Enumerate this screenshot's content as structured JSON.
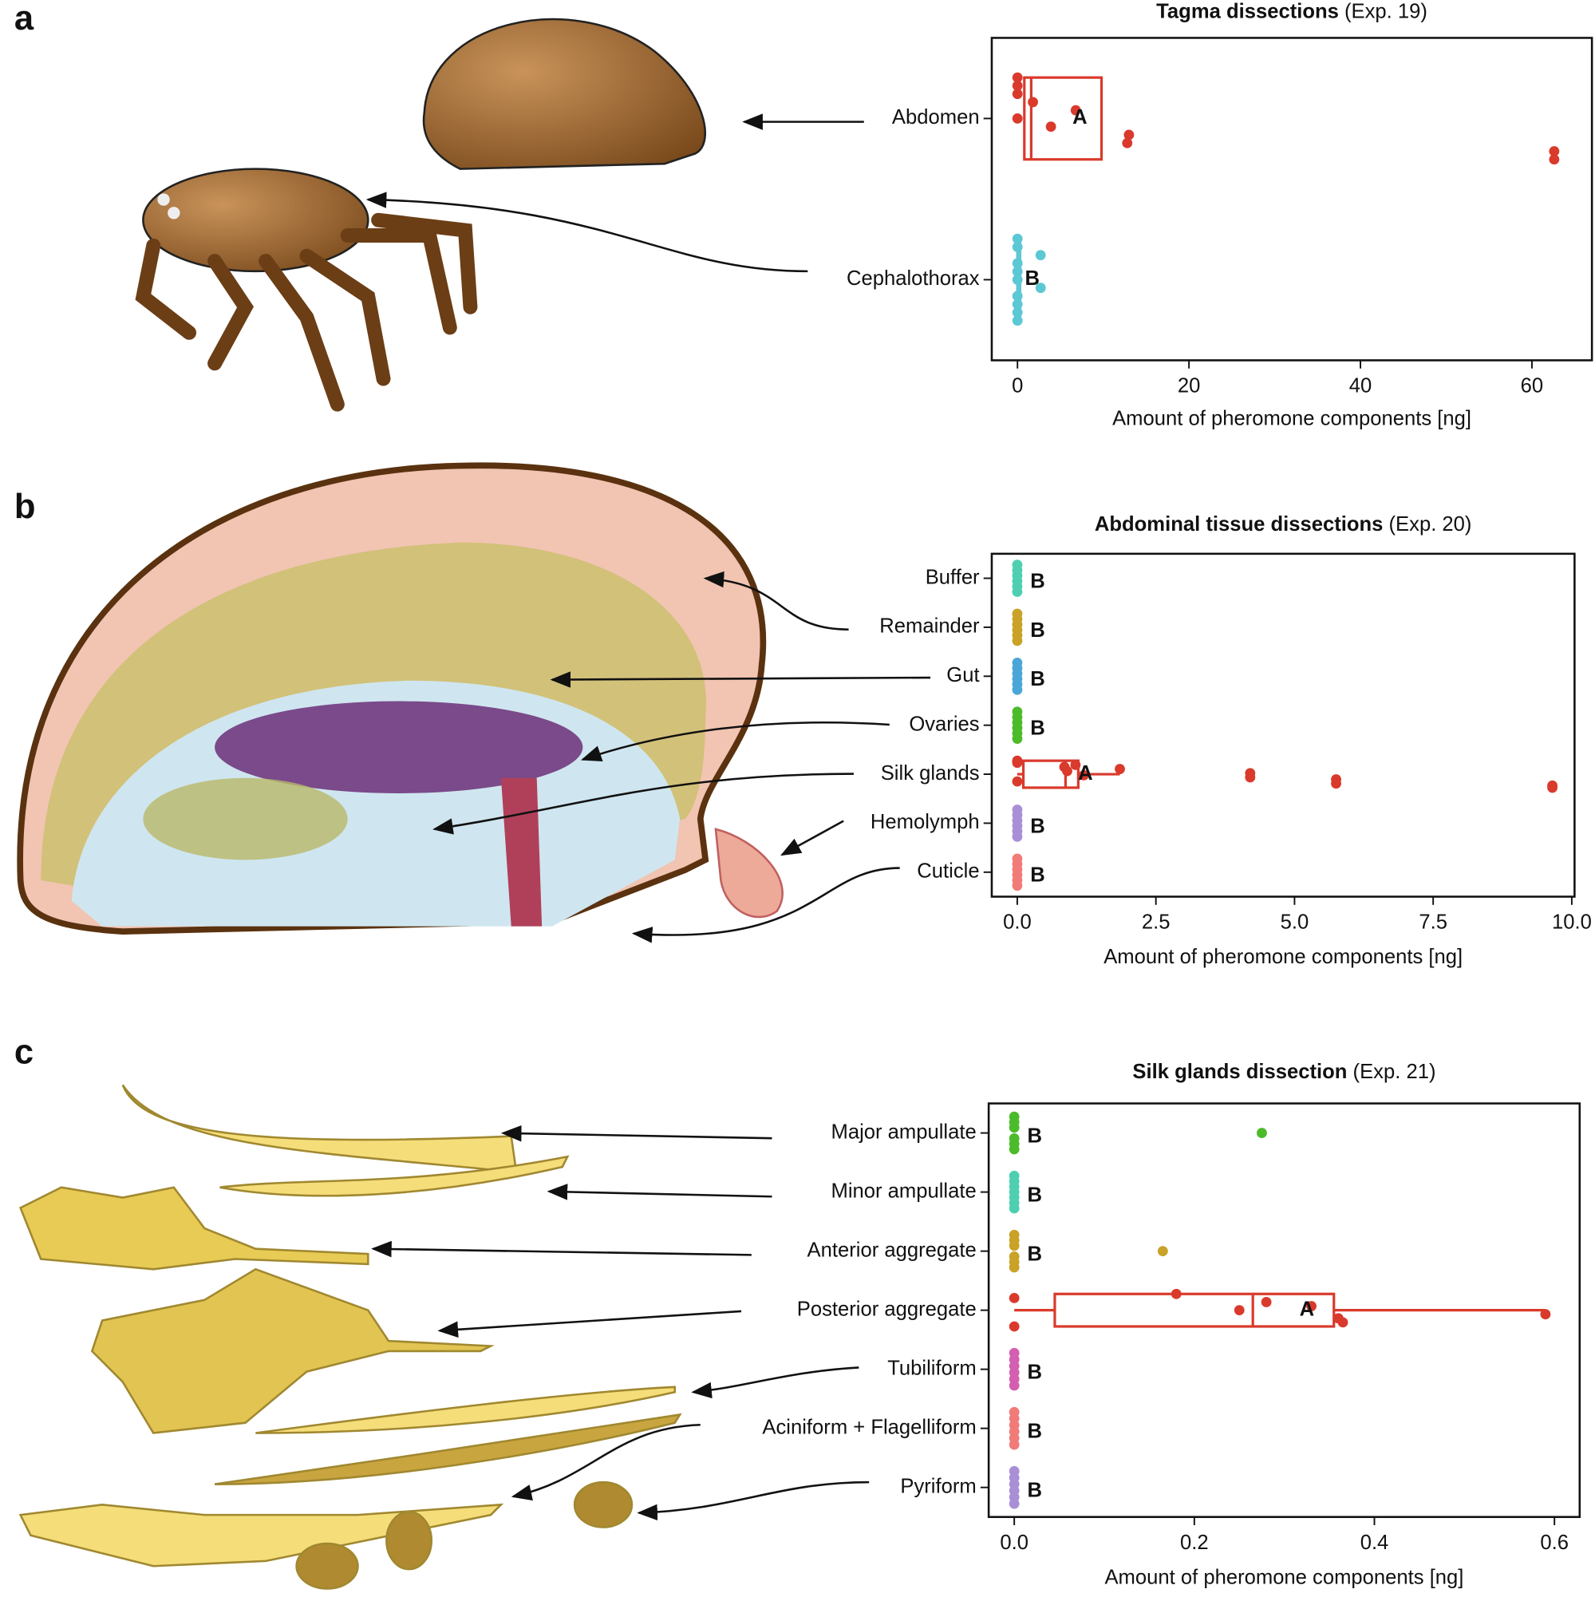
{
  "chart_data": [
    {
      "type": "box",
      "panel_label": "a",
      "title": "Tagma dissections",
      "title_note": "(Exp. 19)",
      "xlabel": "Amount of pheromone components [ng]",
      "xlim": [
        -3,
        67
      ],
      "xticks": [
        0,
        20,
        40,
        60
      ],
      "categories": [
        "Abdomen",
        "Cephalothorax"
      ],
      "groups": [
        {
          "color": "#d93a2b",
          "letter": "A",
          "points": [
            0,
            0,
            0,
            1.8,
            6.8,
            0,
            3.9,
            13,
            12.8,
            62.6,
            62.6
          ],
          "box": {
            "q1": 0.8,
            "median": 1.6,
            "q3": 9.8
          }
        },
        {
          "color": "#5bc8d4",
          "letter": "B",
          "points": [
            0,
            0,
            2.7,
            0,
            0,
            0,
            2.7,
            0,
            0,
            0,
            0
          ],
          "box": {
            "q1": 0,
            "median": 0,
            "q3": 0.3
          }
        }
      ]
    },
    {
      "type": "box",
      "panel_label": "b",
      "title": "Abdominal tissue dissections",
      "title_note": "(Exp. 20)",
      "xlabel": "Amount of pheromone components [ng]",
      "xlim": [
        -0.46,
        10.05
      ],
      "xticks": [
        {
          "value": 0,
          "label": "0.0"
        },
        2.5,
        {
          "value": 5,
          "label": "5.0"
        },
        7.5,
        {
          "value": 10,
          "label": "10.0"
        }
      ],
      "categories": [
        "Buffer",
        "Remainder",
        "Gut",
        "Ovaries",
        "Silk glands",
        "Hemolymph",
        "Cuticle"
      ],
      "groups": [
        {
          "color": "#4ecfb0",
          "letter": "B",
          "points": [
            0,
            0,
            0,
            0,
            0,
            0
          ]
        },
        {
          "color": "#c9a227",
          "letter": "B",
          "points": [
            0,
            0,
            0,
            0,
            0,
            0
          ]
        },
        {
          "color": "#4aa6d6",
          "letter": "B",
          "points": [
            0,
            0,
            0,
            0,
            0,
            0
          ]
        },
        {
          "color": "#4cbb2a",
          "letter": "B",
          "points": [
            0,
            0,
            0,
            0,
            0,
            0
          ]
        },
        {
          "color": "#d93a2b",
          "letter": "A",
          "points": [
            0,
            0,
            1.05,
            0.85,
            1.85,
            0.9,
            4.2,
            1.2,
            4.2,
            5.75,
            0,
            5.75,
            9.65,
            9.65
          ],
          "box": {
            "whisker_low": 0,
            "q1": 0.11,
            "median": 0.87,
            "q3": 1.1,
            "whisker_high": 1.85
          }
        },
        {
          "color": "#a98fd6",
          "letter": "B",
          "points": [
            0,
            0,
            0,
            0,
            0,
            0
          ]
        },
        {
          "color": "#f07b78",
          "letter": "B",
          "points": [
            0,
            0,
            0,
            0,
            0,
            0
          ]
        }
      ]
    },
    {
      "type": "box",
      "panel_label": "c",
      "title": "Silk glands dissection",
      "title_note": "(Exp. 21)",
      "xlabel": "Amount of pheromone components [ng]",
      "xlim": [
        -0.0284,
        0.628
      ],
      "xticks": [
        {
          "value": 0,
          "label": "0.0"
        },
        0.2,
        0.4,
        0.6
      ],
      "categories": [
        "Major ampullate",
        "Minor ampullate",
        "Anterior aggregate",
        "Posterior aggregate",
        "Tubiliform",
        "Aciniform + Flagelliform",
        "Pyriform"
      ],
      "groups": [
        {
          "color": "#4cbb2a",
          "letter": "B",
          "points": [
            0,
            0,
            0,
            0.275,
            0,
            0,
            0
          ]
        },
        {
          "color": "#4ecfb0",
          "letter": "B",
          "points": [
            0,
            0,
            0,
            0,
            0,
            0,
            0
          ]
        },
        {
          "color": "#c9a227",
          "letter": "B",
          "points": [
            0,
            0,
            0,
            0.165,
            0,
            0,
            0
          ]
        },
        {
          "color": "#d93a2b",
          "letter": "A",
          "points": [
            0.18,
            0,
            0.28,
            0.33,
            0.25,
            0.59,
            0.36,
            0.365,
            0
          ],
          "box": {
            "whisker_low": 0,
            "q1": 0.045,
            "median": 0.265,
            "q3": 0.355,
            "whisker_high": 0.59
          }
        },
        {
          "color": "#d45fb0",
          "letter": "B",
          "points": [
            0,
            0,
            0,
            0,
            0,
            0
          ]
        },
        {
          "color": "#f07b78",
          "letter": "B",
          "points": [
            0,
            0,
            0,
            0,
            0,
            0
          ]
        },
        {
          "color": "#a98fd6",
          "letter": "B",
          "points": [
            0,
            0,
            0,
            0,
            0,
            0
          ]
        }
      ]
    }
  ]
}
